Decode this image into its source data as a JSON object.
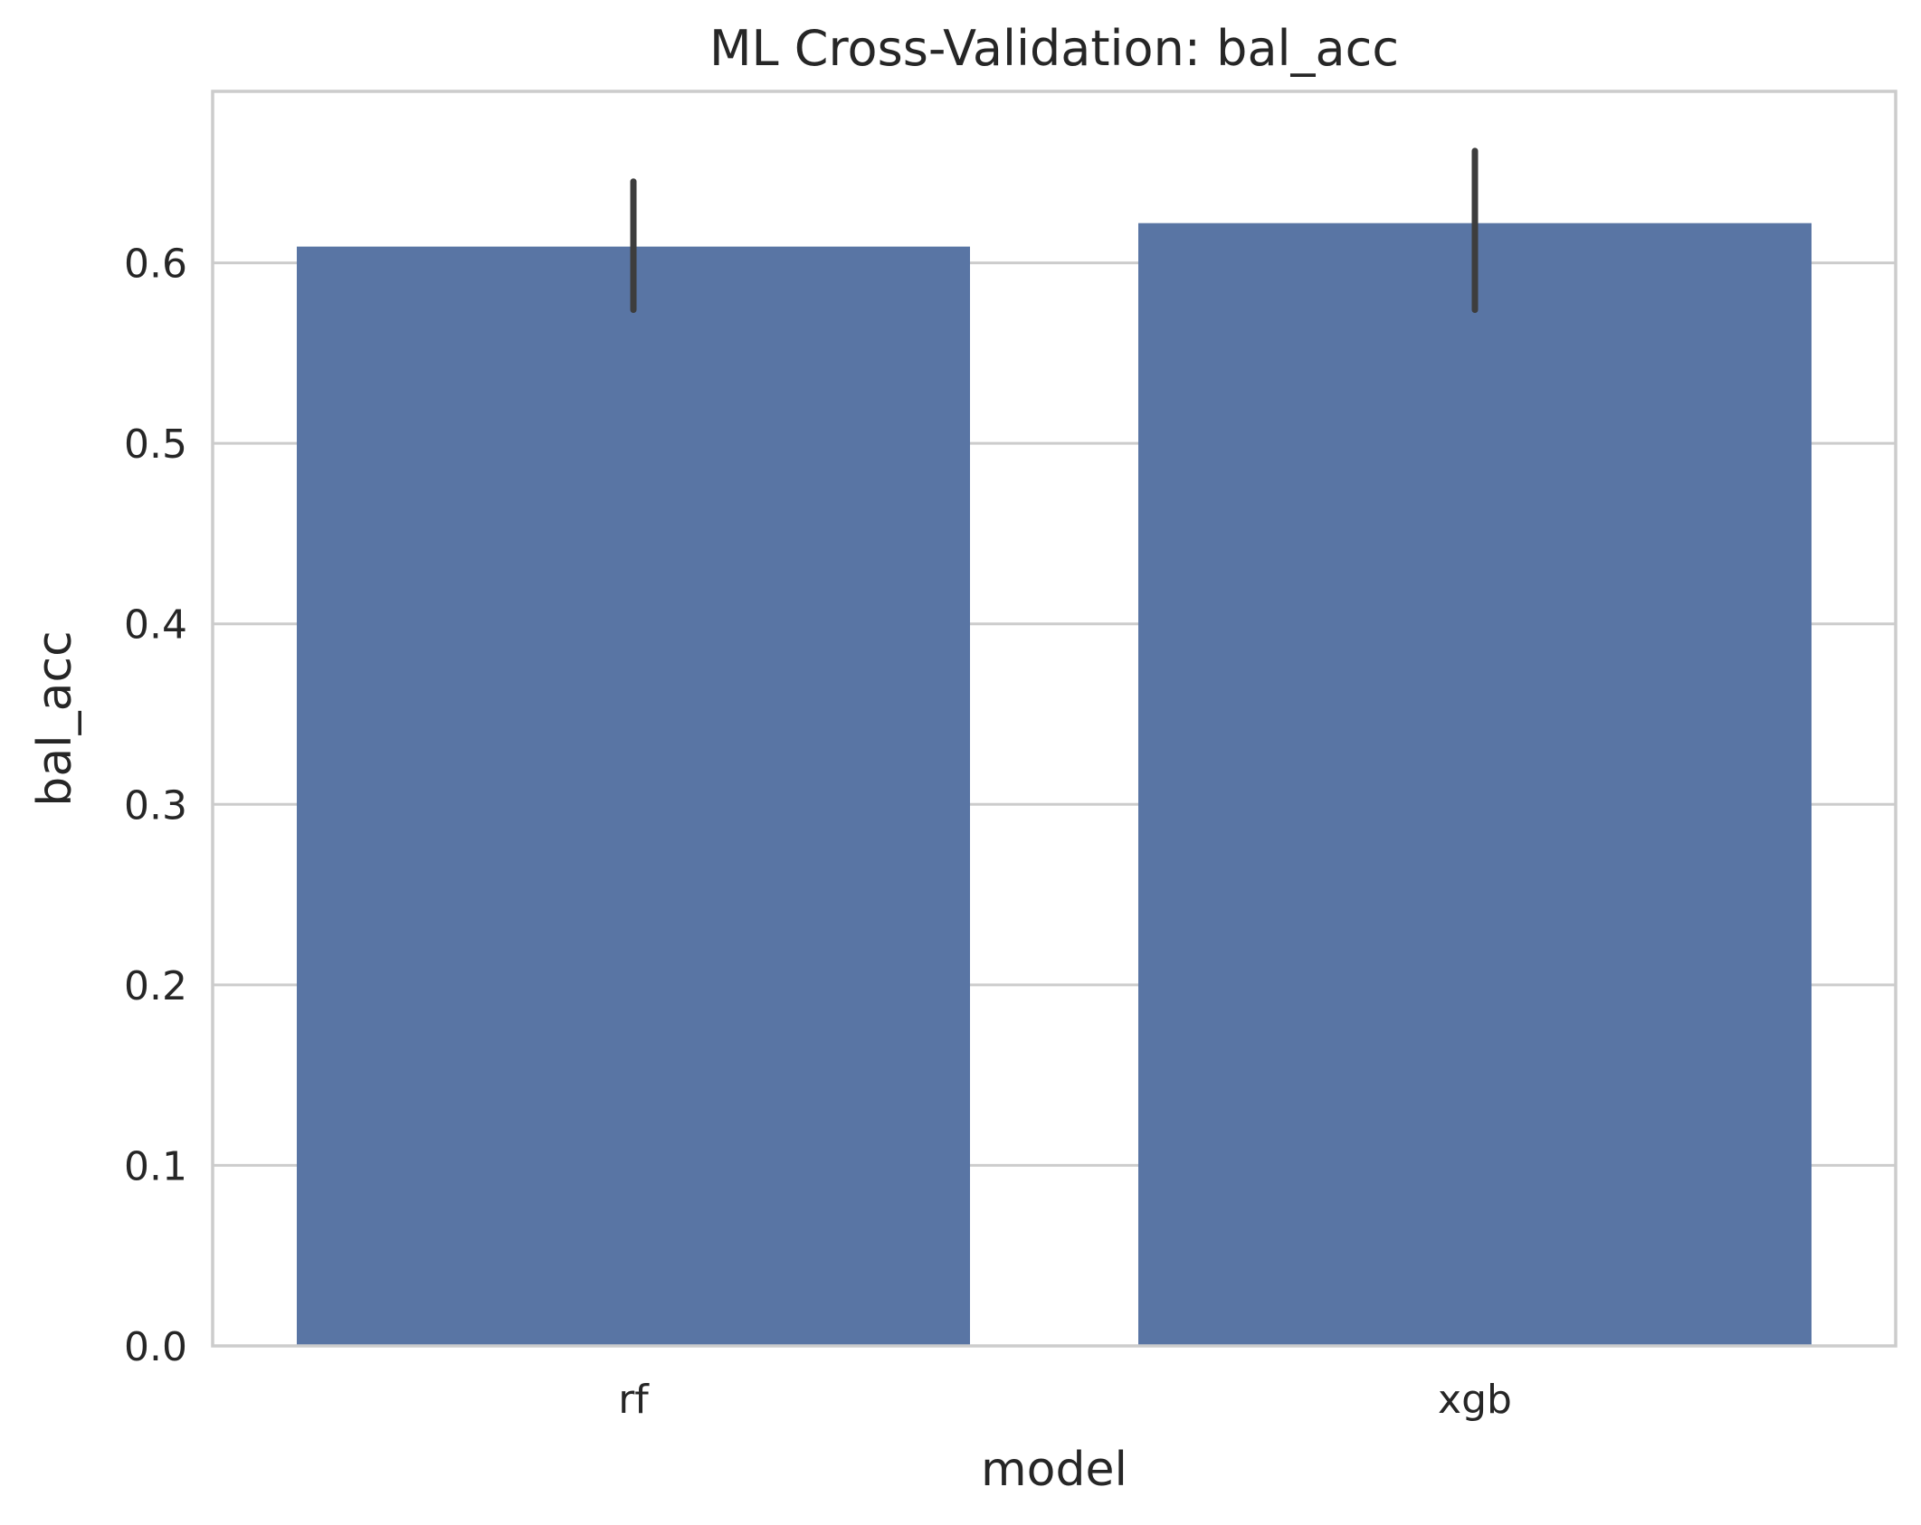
{
  "chart_data": {
    "type": "bar",
    "title": "ML Cross-Validation: bal_acc",
    "xlabel": "model",
    "ylabel": "bal_acc",
    "categories": [
      "rf",
      "xgb"
    ],
    "values": [
      0.609,
      0.622
    ],
    "error_bars": [
      {
        "low": 0.574,
        "high": 0.645
      },
      {
        "low": 0.574,
        "high": 0.662
      }
    ],
    "ylim": [
      0,
      0.695
    ],
    "yticks": [
      0.0,
      0.1,
      0.2,
      0.3,
      0.4,
      0.5,
      0.6
    ],
    "ytick_labels": [
      "0.0",
      "0.1",
      "0.2",
      "0.3",
      "0.4",
      "0.5",
      "0.6"
    ],
    "grid": "horizontal",
    "bar_color": "#5975a4",
    "error_color": "#3d3d3d"
  }
}
